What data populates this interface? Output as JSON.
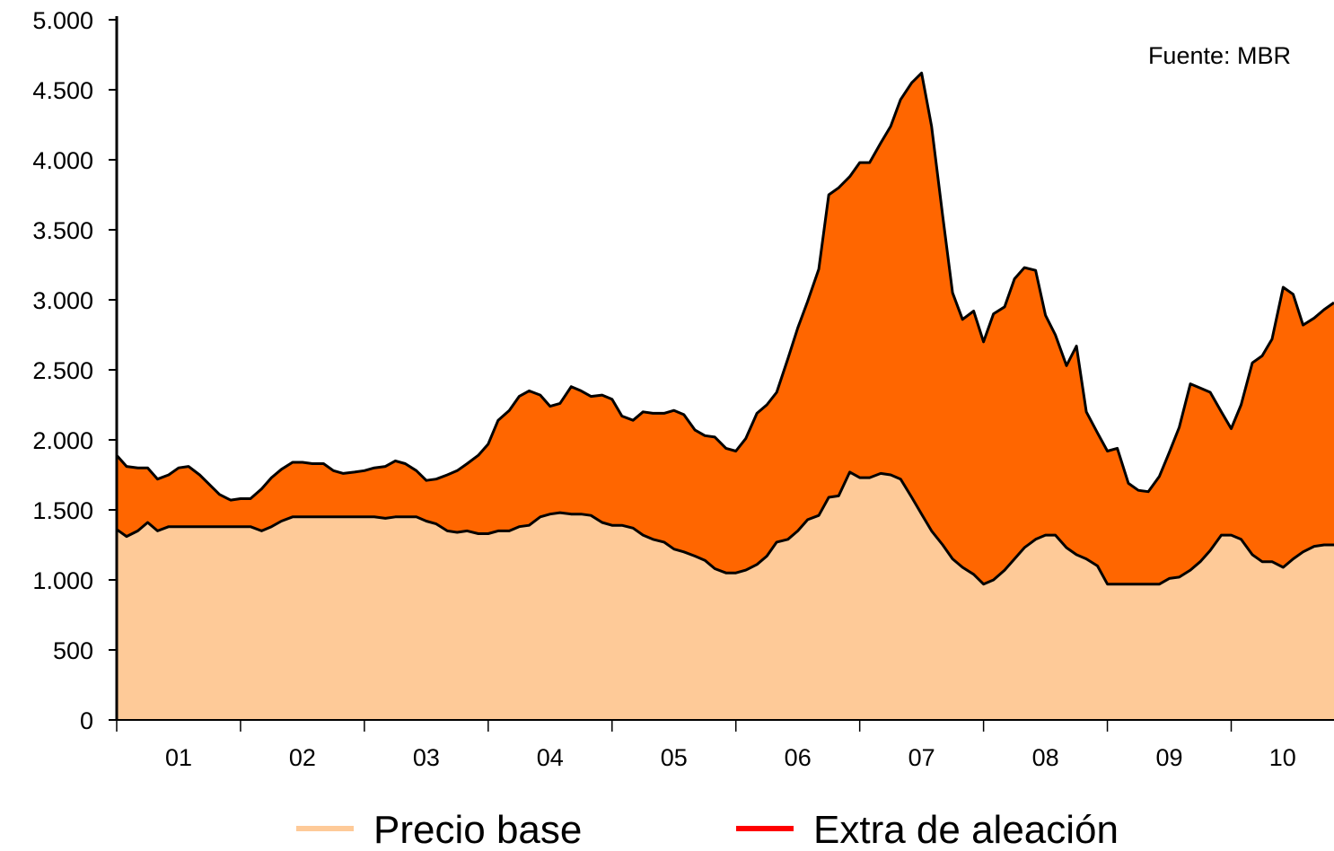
{
  "chart_data": {
    "type": "area",
    "stacked": true,
    "source_note": "Fuente: MBR",
    "x_categories": [
      "01",
      "02",
      "03",
      "04",
      "05",
      "06",
      "07",
      "08",
      "09",
      "10"
    ],
    "x_range": [
      2000.0,
      2009.83
    ],
    "ylim": [
      0,
      5000
    ],
    "y_ticks": [
      0,
      500,
      1000,
      1500,
      2000,
      2500,
      3000,
      3500,
      4000,
      4500,
      5000
    ],
    "y_tick_labels": [
      "0",
      "500",
      "1.000",
      "1.500",
      "2.000",
      "2.500",
      "3.000",
      "3.500",
      "4.000",
      "4.500",
      "5.000"
    ],
    "grid": false,
    "legend_position": "bottom",
    "colors": {
      "base_fill": "#FECA98",
      "total_fill": "#FF6600",
      "outline": "#000000",
      "legend_alloy": "#FF0000"
    },
    "legend": [
      {
        "label": "Precio base",
        "color": "#FECA98"
      },
      {
        "label": "Extra de aleación",
        "color": "#FF0000"
      }
    ],
    "series": [
      {
        "name": "Precio base",
        "points": [
          [
            2000.0,
            1360
          ],
          [
            2000.08,
            1310
          ],
          [
            2000.17,
            1350
          ],
          [
            2000.25,
            1410
          ],
          [
            2000.33,
            1350
          ],
          [
            2000.42,
            1380
          ],
          [
            2000.5,
            1380
          ],
          [
            2000.75,
            1380
          ],
          [
            2001.0,
            1380
          ],
          [
            2001.08,
            1380
          ],
          [
            2001.17,
            1350
          ],
          [
            2001.25,
            1380
          ],
          [
            2001.33,
            1420
          ],
          [
            2001.42,
            1450
          ],
          [
            2001.5,
            1450
          ],
          [
            2002.0,
            1450
          ],
          [
            2002.08,
            1450
          ],
          [
            2002.17,
            1440
          ],
          [
            2002.25,
            1450
          ],
          [
            2002.42,
            1450
          ],
          [
            2002.5,
            1420
          ],
          [
            2002.58,
            1400
          ],
          [
            2002.67,
            1350
          ],
          [
            2002.75,
            1340
          ],
          [
            2002.83,
            1350
          ],
          [
            2002.92,
            1330
          ],
          [
            2003.0,
            1330
          ],
          [
            2003.08,
            1350
          ],
          [
            2003.17,
            1350
          ],
          [
            2003.25,
            1380
          ],
          [
            2003.33,
            1390
          ],
          [
            2003.42,
            1450
          ],
          [
            2003.5,
            1470
          ],
          [
            2003.58,
            1480
          ],
          [
            2003.67,
            1470
          ],
          [
            2003.75,
            1470
          ],
          [
            2003.83,
            1460
          ],
          [
            2003.92,
            1410
          ],
          [
            2004.0,
            1390
          ],
          [
            2004.08,
            1390
          ],
          [
            2004.17,
            1370
          ],
          [
            2004.25,
            1320
          ],
          [
            2004.33,
            1290
          ],
          [
            2004.42,
            1270
          ],
          [
            2004.5,
            1220
          ],
          [
            2004.58,
            1200
          ],
          [
            2004.67,
            1170
          ],
          [
            2004.75,
            1140
          ],
          [
            2004.83,
            1080
          ],
          [
            2004.92,
            1050
          ],
          [
            2005.0,
            1050
          ],
          [
            2005.08,
            1070
          ],
          [
            2005.17,
            1110
          ],
          [
            2005.25,
            1170
          ],
          [
            2005.33,
            1270
          ],
          [
            2005.42,
            1290
          ],
          [
            2005.5,
            1350
          ],
          [
            2005.58,
            1430
          ],
          [
            2005.67,
            1460
          ],
          [
            2005.75,
            1590
          ],
          [
            2005.83,
            1600
          ],
          [
            2005.92,
            1770
          ],
          [
            2006.0,
            1730
          ],
          [
            2006.08,
            1730
          ],
          [
            2006.17,
            1760
          ],
          [
            2006.25,
            1750
          ],
          [
            2006.33,
            1720
          ],
          [
            2006.42,
            1590
          ],
          [
            2006.5,
            1470
          ],
          [
            2006.58,
            1350
          ],
          [
            2006.67,
            1250
          ],
          [
            2006.75,
            1150
          ],
          [
            2006.83,
            1090
          ],
          [
            2006.92,
            1040
          ],
          [
            2007.0,
            970
          ],
          [
            2007.08,
            1000
          ],
          [
            2007.17,
            1070
          ],
          [
            2007.25,
            1150
          ],
          [
            2007.33,
            1230
          ],
          [
            2007.42,
            1290
          ],
          [
            2007.5,
            1320
          ],
          [
            2007.58,
            1320
          ],
          [
            2007.67,
            1230
          ],
          [
            2007.75,
            1180
          ],
          [
            2007.83,
            1150
          ],
          [
            2007.92,
            1100
          ],
          [
            2008.0,
            970
          ],
          [
            2008.42,
            970
          ],
          [
            2008.5,
            1010
          ],
          [
            2008.58,
            1020
          ],
          [
            2008.67,
            1070
          ],
          [
            2008.75,
            1130
          ],
          [
            2008.83,
            1210
          ],
          [
            2008.92,
            1320
          ],
          [
            2009.0,
            1320
          ],
          [
            2009.08,
            1290
          ],
          [
            2009.17,
            1180
          ],
          [
            2009.25,
            1130
          ],
          [
            2009.33,
            1130
          ],
          [
            2009.42,
            1090
          ],
          [
            2009.5,
            1150
          ],
          [
            2009.58,
            1200
          ],
          [
            2009.67,
            1240
          ],
          [
            2009.75,
            1250
          ],
          [
            2009.83,
            1250
          ]
        ]
      },
      {
        "name": "Extra de aleación",
        "total_points": [
          [
            2000.0,
            1890
          ],
          [
            2000.08,
            1810
          ],
          [
            2000.17,
            1800
          ],
          [
            2000.25,
            1800
          ],
          [
            2000.33,
            1720
          ],
          [
            2000.42,
            1750
          ],
          [
            2000.5,
            1800
          ],
          [
            2000.58,
            1810
          ],
          [
            2000.67,
            1750
          ],
          [
            2000.75,
            1680
          ],
          [
            2000.83,
            1610
          ],
          [
            2000.92,
            1570
          ],
          [
            2001.0,
            1580
          ],
          [
            2001.08,
            1580
          ],
          [
            2001.17,
            1650
          ],
          [
            2001.25,
            1730
          ],
          [
            2001.33,
            1790
          ],
          [
            2001.42,
            1840
          ],
          [
            2001.5,
            1840
          ],
          [
            2001.58,
            1830
          ],
          [
            2001.67,
            1830
          ],
          [
            2001.75,
            1780
          ],
          [
            2001.83,
            1760
          ],
          [
            2001.92,
            1770
          ],
          [
            2002.0,
            1780
          ],
          [
            2002.08,
            1800
          ],
          [
            2002.17,
            1810
          ],
          [
            2002.25,
            1850
          ],
          [
            2002.33,
            1830
          ],
          [
            2002.42,
            1780
          ],
          [
            2002.5,
            1710
          ],
          [
            2002.58,
            1720
          ],
          [
            2002.67,
            1750
          ],
          [
            2002.75,
            1780
          ],
          [
            2002.83,
            1830
          ],
          [
            2002.92,
            1890
          ],
          [
            2003.0,
            1970
          ],
          [
            2003.08,
            2140
          ],
          [
            2003.17,
            2210
          ],
          [
            2003.25,
            2310
          ],
          [
            2003.33,
            2350
          ],
          [
            2003.42,
            2320
          ],
          [
            2003.5,
            2240
          ],
          [
            2003.58,
            2260
          ],
          [
            2003.67,
            2380
          ],
          [
            2003.75,
            2350
          ],
          [
            2003.83,
            2310
          ],
          [
            2003.92,
            2320
          ],
          [
            2004.0,
            2290
          ],
          [
            2004.08,
            2170
          ],
          [
            2004.17,
            2140
          ],
          [
            2004.25,
            2200
          ],
          [
            2004.33,
            2190
          ],
          [
            2004.42,
            2190
          ],
          [
            2004.5,
            2210
          ],
          [
            2004.58,
            2180
          ],
          [
            2004.67,
            2070
          ],
          [
            2004.75,
            2030
          ],
          [
            2004.83,
            2020
          ],
          [
            2004.92,
            1940
          ],
          [
            2005.0,
            1920
          ],
          [
            2005.08,
            2010
          ],
          [
            2005.17,
            2190
          ],
          [
            2005.25,
            2250
          ],
          [
            2005.33,
            2340
          ],
          [
            2005.42,
            2580
          ],
          [
            2005.5,
            2800
          ],
          [
            2005.58,
            2990
          ],
          [
            2005.67,
            3220
          ],
          [
            2005.75,
            3750
          ],
          [
            2005.83,
            3800
          ],
          [
            2005.92,
            3880
          ],
          [
            2006.0,
            3980
          ],
          [
            2006.08,
            3980
          ],
          [
            2006.17,
            4120
          ],
          [
            2006.25,
            4240
          ],
          [
            2006.33,
            4430
          ],
          [
            2006.42,
            4550
          ],
          [
            2006.5,
            4620
          ],
          [
            2006.58,
            4240
          ],
          [
            2006.67,
            3600
          ],
          [
            2006.75,
            3050
          ],
          [
            2006.83,
            2860
          ],
          [
            2006.92,
            2920
          ],
          [
            2007.0,
            2700
          ],
          [
            2007.08,
            2900
          ],
          [
            2007.17,
            2950
          ],
          [
            2007.25,
            3150
          ],
          [
            2007.33,
            3230
          ],
          [
            2007.42,
            3210
          ],
          [
            2007.5,
            2890
          ],
          [
            2007.58,
            2750
          ],
          [
            2007.67,
            2530
          ],
          [
            2007.75,
            2670
          ],
          [
            2007.83,
            2200
          ],
          [
            2007.92,
            2050
          ],
          [
            2008.0,
            1920
          ],
          [
            2008.08,
            1940
          ],
          [
            2008.17,
            1690
          ],
          [
            2008.25,
            1640
          ],
          [
            2008.33,
            1630
          ],
          [
            2008.42,
            1740
          ],
          [
            2008.5,
            1910
          ],
          [
            2008.58,
            2090
          ],
          [
            2008.67,
            2400
          ],
          [
            2008.75,
            2370
          ],
          [
            2008.83,
            2340
          ],
          [
            2008.92,
            2200
          ],
          [
            2009.0,
            2080
          ],
          [
            2009.08,
            2250
          ],
          [
            2009.17,
            2550
          ],
          [
            2009.25,
            2600
          ],
          [
            2009.33,
            2720
          ],
          [
            2009.42,
            3090
          ],
          [
            2009.5,
            3040
          ],
          [
            2009.58,
            2820
          ],
          [
            2009.67,
            2870
          ],
          [
            2009.75,
            2930
          ],
          [
            2009.83,
            2980
          ]
        ]
      }
    ]
  }
}
